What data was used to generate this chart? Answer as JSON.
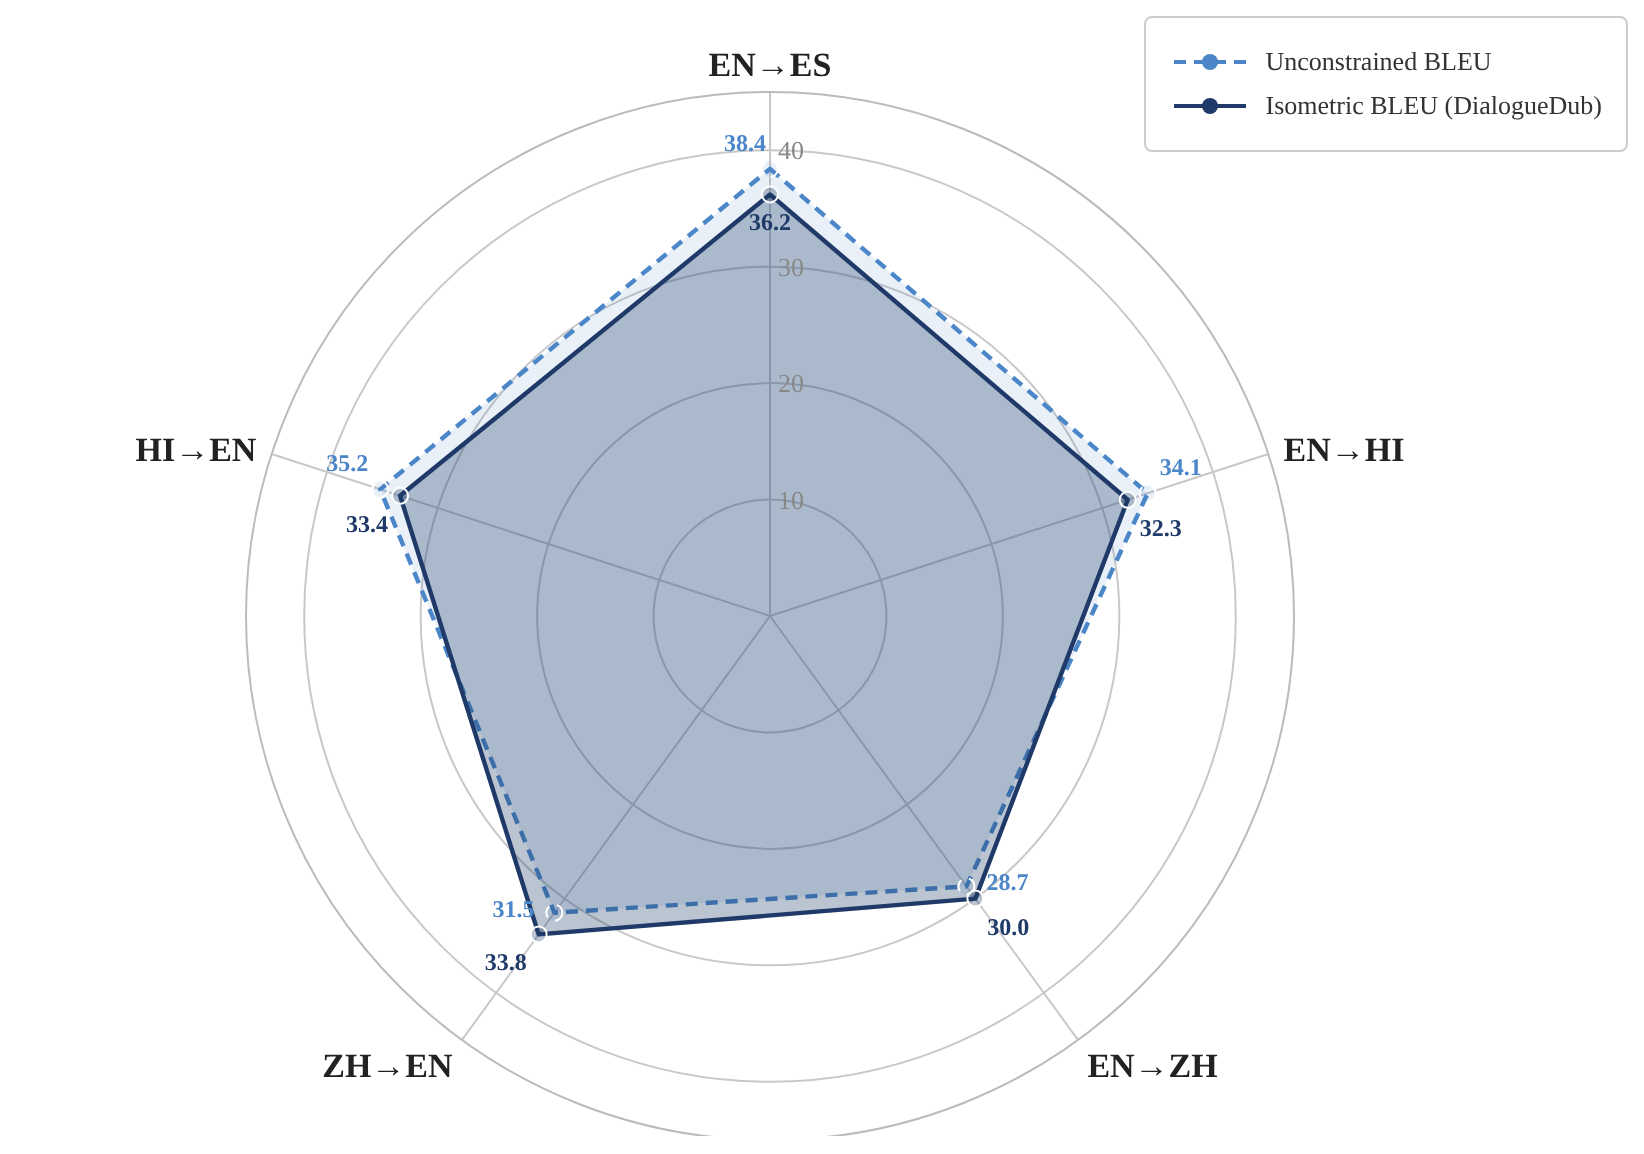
{
  "chart_data": {
    "type": "radar",
    "categories": [
      "EN→ES",
      "EN→HI",
      "EN→ZH",
      "ZH→EN",
      "HI→EN"
    ],
    "series": [
      {
        "name": "Unconstrained BLEU",
        "color": "#4a86c8",
        "values": [
          38.4,
          34.1,
          28.7,
          31.5,
          35.2
        ],
        "value_labels": [
          "38.4",
          "34.1",
          "28.7",
          "31.5",
          "35.2"
        ],
        "line_style": "dashed"
      },
      {
        "name": "Isometric BLEU (DialogueDub)",
        "color": "#1f3a68",
        "values": [
          36.2,
          32.3,
          30.0,
          33.8,
          33.4
        ],
        "value_labels": [
          "36.2",
          "32.3",
          "30.0",
          "33.8",
          "33.4"
        ],
        "line_style": "solid"
      }
    ],
    "ylim": [
      0,
      45
    ],
    "yticks": [
      10,
      20,
      30,
      40
    ],
    "grid": true,
    "legend": "top right",
    "marker": "circle"
  }
}
